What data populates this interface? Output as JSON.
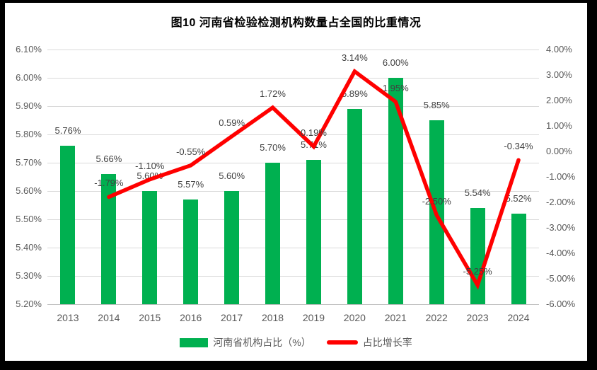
{
  "title": "图10  河南省检验检测机构数量占全国的比重情况",
  "colors": {
    "bar": "#00B050",
    "line": "#FF0000",
    "gridline": "#D9D9D9",
    "axis_line": "#BFBFBF",
    "tick_text": "#595959",
    "label_text": "#404040",
    "frame": "#000000",
    "panel": "#FFFFFF"
  },
  "legend": [
    {
      "type": "bar",
      "label": "河南省机构占比（%）",
      "color": "#00B050"
    },
    {
      "type": "line",
      "label": "占比增长率",
      "color": "#FF0000"
    }
  ],
  "chart_data": {
    "type": "combo-bar-line",
    "title": "图10  河南省检验检测机构数量占全国的比重情况",
    "categories": [
      "2013",
      "2014",
      "2015",
      "2016",
      "2017",
      "2018",
      "2019",
      "2020",
      "2021",
      "2022",
      "2023",
      "2024"
    ],
    "series": [
      {
        "name": "河南省机构占比（%）",
        "type": "bar",
        "axis": "left",
        "color": "#00B050",
        "values": [
          5.76,
          5.66,
          5.6,
          5.57,
          5.6,
          5.7,
          5.71,
          5.89,
          6.0,
          5.85,
          5.54,
          5.52
        ],
        "labels": [
          "5.76%",
          "5.66%",
          "5.60%",
          "5.57%",
          "5.60%",
          "5.70%",
          "5.71%",
          "5.89%",
          "6.00%",
          "5.85%",
          "5.54%",
          "5.52%"
        ]
      },
      {
        "name": "占比增长率",
        "type": "line",
        "axis": "right",
        "color": "#FF0000",
        "values": [
          null,
          -1.79,
          -1.1,
          -0.55,
          0.59,
          1.72,
          0.19,
          3.14,
          1.95,
          -2.5,
          -5.25,
          -0.34
        ],
        "labels": [
          null,
          "-1.79%",
          "-1.10%",
          "-0.55%",
          "0.59%",
          "1.72%",
          "0.19%",
          "3.14%",
          "1.95%",
          "-2.50%",
          "-5.25%",
          "-0.34%"
        ]
      }
    ],
    "left_axis": {
      "min": 5.2,
      "max": 6.1,
      "step": 0.1,
      "ticks": [
        "6.10%",
        "6.00%",
        "5.90%",
        "5.80%",
        "5.70%",
        "5.60%",
        "5.50%",
        "5.40%",
        "5.30%",
        "5.20%"
      ]
    },
    "right_axis": {
      "min": -6.0,
      "max": 4.0,
      "step": 1.0,
      "ticks": [
        "4.00%",
        "3.00%",
        "2.00%",
        "1.00%",
        "0.00%",
        "-1.00%",
        "-2.00%",
        "-3.00%",
        "-4.00%",
        "-5.00%",
        "-6.00%"
      ]
    },
    "grid": true,
    "legend_position": "bottom"
  }
}
